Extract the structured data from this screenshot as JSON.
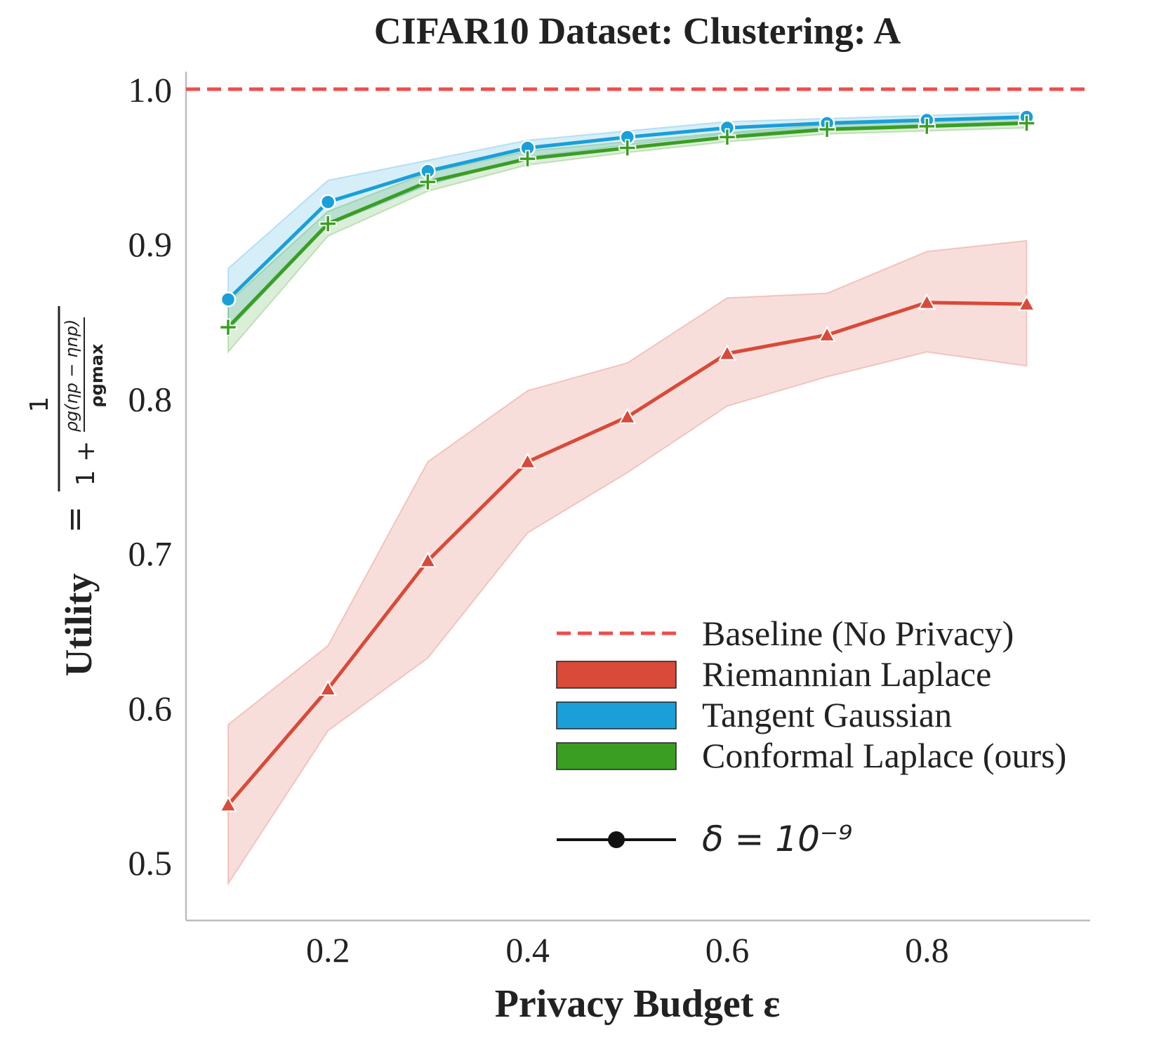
{
  "chart_data": {
    "type": "line",
    "title": "CIFAR10 Dataset: Clustering: A",
    "xlabel": "Privacy Budget ε",
    "ylabel": {
      "lead": "Utility",
      "eq": "=",
      "num": "1",
      "den_lead": "1 +",
      "inner_num": "ρg(ηp − ηnp)",
      "inner_den": "ρgmax"
    },
    "xlim": [
      0.06,
      0.94
    ],
    "ylim": [
      0.463,
      1.01
    ],
    "x": [
      0.1,
      0.2,
      0.3,
      0.4,
      0.5,
      0.6,
      0.7,
      0.8,
      0.9
    ],
    "xticks": [
      0.2,
      0.4,
      0.6,
      0.8
    ],
    "xtick_labels": [
      "0.2",
      "0.4",
      "0.6",
      "0.8"
    ],
    "yticks": [
      0.5,
      0.6,
      0.7,
      0.8,
      0.9,
      1.0
    ],
    "ytick_labels": [
      "0.5",
      "0.6",
      "0.7",
      "0.8",
      "0.9",
      "1.0"
    ],
    "baseline": {
      "name": "Baseline (No Privacy)",
      "value": 1.0,
      "color": "#f04c4c"
    },
    "series": [
      {
        "name": "Riemannian Laplace",
        "color": "#d94a38",
        "marker": "triangle",
        "values": [
          0.537,
          0.612,
          0.695,
          0.759,
          0.788,
          0.829,
          0.841,
          0.862,
          0.861
        ],
        "lower": [
          0.486,
          0.585,
          0.632,
          0.713,
          0.752,
          0.795,
          0.814,
          0.83,
          0.821
        ],
        "upper": [
          0.589,
          0.64,
          0.759,
          0.805,
          0.823,
          0.865,
          0.868,
          0.895,
          0.902
        ]
      },
      {
        "name": "Tangent Gaussian",
        "color": "#1a9fd9",
        "marker": "circle",
        "values": [
          0.864,
          0.927,
          0.947,
          0.962,
          0.969,
          0.975,
          0.978,
          0.98,
          0.982
        ],
        "lower": [
          0.844,
          0.912,
          0.938,
          0.956,
          0.964,
          0.971,
          0.975,
          0.977,
          0.979
        ],
        "upper": [
          0.884,
          0.941,
          0.954,
          0.967,
          0.973,
          0.979,
          0.981,
          0.983,
          0.985
        ]
      },
      {
        "name": "Conformal Laplace (ours)",
        "color": "#3a9e22",
        "marker": "plus",
        "values": [
          0.846,
          0.913,
          0.94,
          0.955,
          0.962,
          0.969,
          0.974,
          0.976,
          0.978
        ],
        "lower": [
          0.83,
          0.905,
          0.934,
          0.951,
          0.959,
          0.966,
          0.971,
          0.973,
          0.975
        ],
        "upper": [
          0.862,
          0.921,
          0.946,
          0.96,
          0.966,
          0.972,
          0.977,
          0.979,
          0.981
        ]
      }
    ],
    "legend": {
      "position": "lower-right",
      "delta_label": "δ = 10⁻⁹"
    },
    "grid": false
  }
}
